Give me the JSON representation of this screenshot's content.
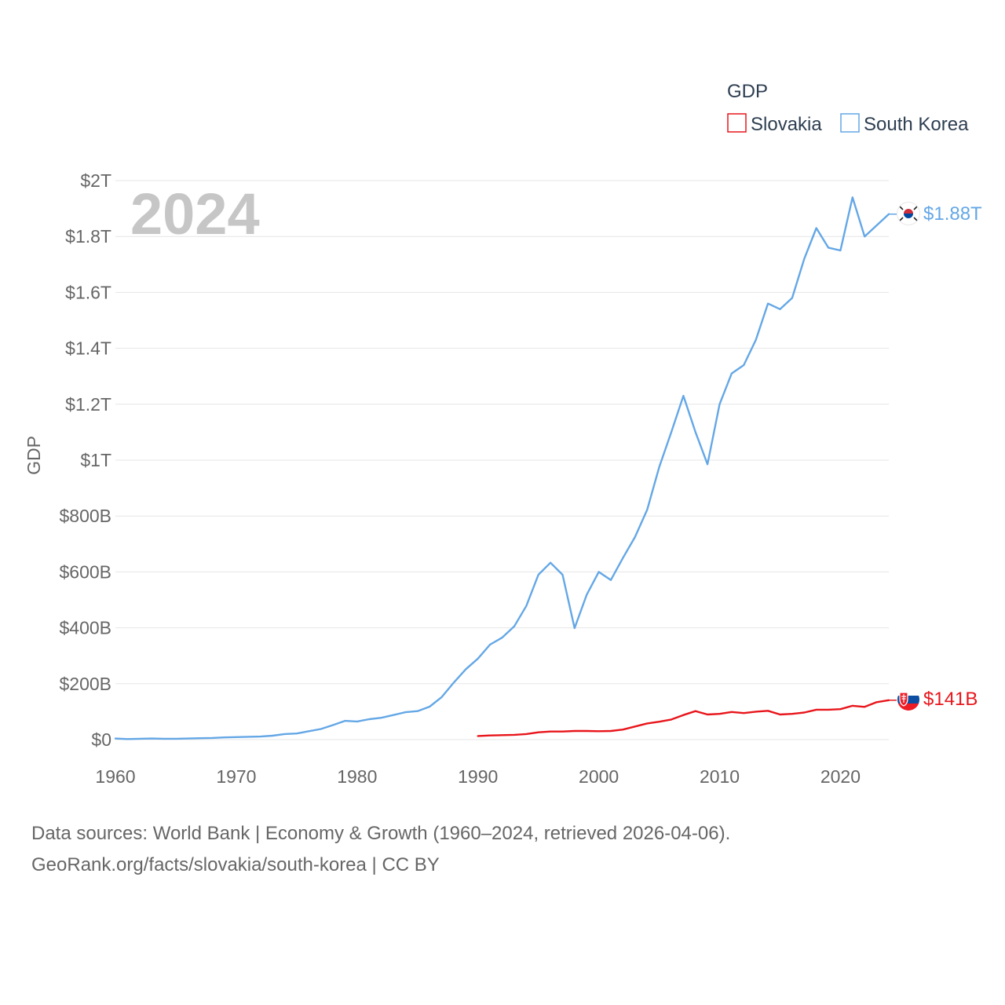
{
  "chart_data": {
    "type": "line",
    "title": "GDP",
    "ylabel": "GDP",
    "xlabel": "",
    "year_label": "2024",
    "xlim": [
      1960,
      2024
    ],
    "ylim": [
      0,
      2000
    ],
    "y_units": "billions USD",
    "x_ticks": [
      1960,
      1970,
      1980,
      1990,
      2000,
      2010,
      2020
    ],
    "x_tick_labels": [
      "1960",
      "1970",
      "1980",
      "1990",
      "2000",
      "2010",
      "2020"
    ],
    "y_ticks": [
      0,
      200,
      400,
      600,
      800,
      1000,
      1200,
      1400,
      1600,
      1800,
      2000
    ],
    "y_tick_labels": [
      "$0",
      "$200B",
      "$400B",
      "$600B",
      "$800B",
      "$1T",
      "$1.2T",
      "$1.4T",
      "$1.6T",
      "$1.8T",
      "$2T"
    ],
    "grid": true,
    "legend": {
      "title": "GDP",
      "position": "top-right"
    },
    "series": [
      {
        "name": "Slovakia",
        "color": "#e8151b",
        "end_label": "$141B",
        "flag": "slovakia-flag",
        "x": [
          1990,
          1991,
          1992,
          1993,
          1994,
          1995,
          1996,
          1997,
          1998,
          1999,
          2000,
          2001,
          2002,
          2003,
          2004,
          2005,
          2006,
          2007,
          2008,
          2009,
          2010,
          2011,
          2012,
          2013,
          2014,
          2015,
          2016,
          2017,
          2018,
          2019,
          2020,
          2021,
          2022,
          2023,
          2024
        ],
        "values": [
          13,
          15,
          16,
          17,
          20,
          26,
          29,
          29,
          31,
          31,
          30,
          31,
          36,
          47,
          58,
          64,
          72,
          88,
          102,
          90,
          92,
          99,
          95,
          100,
          103,
          90,
          92,
          97,
          107,
          107,
          109,
          121,
          117,
          134,
          141
        ]
      },
      {
        "name": "South Korea",
        "color": "#64a7e6",
        "end_label": "$1.88T",
        "flag": "south-korea-flag",
        "x": [
          1960,
          1961,
          1962,
          1963,
          1964,
          1965,
          1966,
          1967,
          1968,
          1969,
          1970,
          1971,
          1972,
          1973,
          1974,
          1975,
          1976,
          1977,
          1978,
          1979,
          1980,
          1981,
          1982,
          1983,
          1984,
          1985,
          1986,
          1987,
          1988,
          1989,
          1990,
          1991,
          1992,
          1993,
          1994,
          1995,
          1996,
          1997,
          1998,
          1999,
          2000,
          2001,
          2002,
          2003,
          2004,
          2005,
          2006,
          2007,
          2008,
          2009,
          2010,
          2011,
          2012,
          2013,
          2014,
          2015,
          2016,
          2017,
          2018,
          2019,
          2020,
          2021,
          2022,
          2023,
          2024
        ],
        "values": [
          4,
          2,
          3,
          4,
          3,
          3,
          4,
          5,
          6,
          8,
          9,
          10,
          11,
          14,
          20,
          22,
          30,
          38,
          52,
          67,
          65,
          73,
          78,
          88,
          98,
          102,
          118,
          152,
          204,
          252,
          290,
          340,
          365,
          405,
          478,
          590,
          633,
          590,
          399,
          518,
          600,
          571,
          650,
          725,
          822,
          975,
          1100,
          1230,
          1100,
          985,
          1200,
          1310,
          1340,
          1430,
          1560,
          1540,
          1580,
          1720,
          1830,
          1760,
          1750,
          1940,
          1800,
          1840,
          1880
        ]
      }
    ]
  },
  "footer": {
    "line1": "Data sources: World Bank | Economy & Growth (1960–2024, retrieved 2026-04-06).",
    "line2": "GeoRank.org/facts/slovakia/south-korea | CC BY"
  }
}
